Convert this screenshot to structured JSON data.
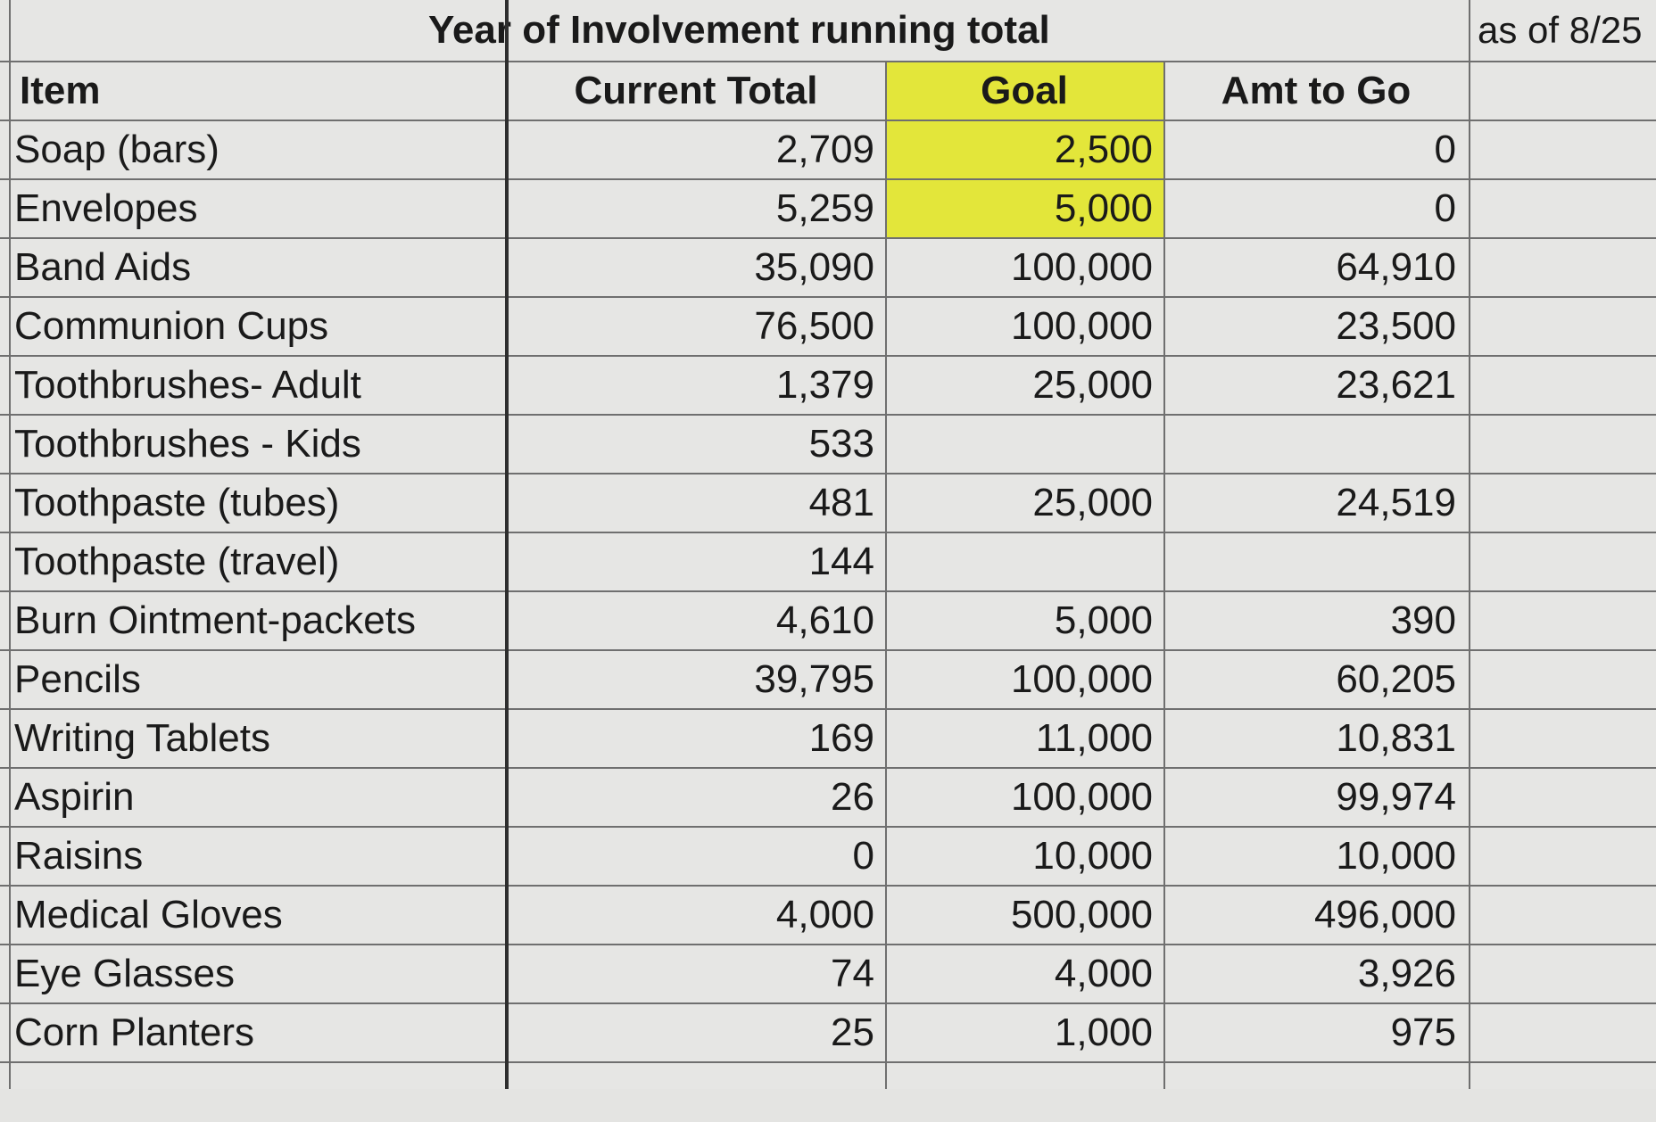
{
  "sheet": {
    "title": "Year of Involvement running total",
    "as_of": "as of 8/25",
    "headers": {
      "item": "Item",
      "current_total": "Current Total",
      "goal": "Goal",
      "amt_to_go": "Amt to Go"
    },
    "highlight_color": "#e3e63a",
    "rows": [
      {
        "item": "Soap (bars)",
        "current": "2,709",
        "goal": "2,500",
        "amt": "0"
      },
      {
        "item": "Envelopes",
        "current": "5,259",
        "goal": "5,000",
        "amt": "0"
      },
      {
        "item": "Band Aids",
        "current": "35,090",
        "goal": "100,000",
        "amt": "64,910"
      },
      {
        "item": "Communion Cups",
        "current": "76,500",
        "goal": "100,000",
        "amt": "23,500"
      },
      {
        "item": "Toothbrushes- Adult",
        "current": "1,379",
        "goal": "25,000",
        "amt": "23,621"
      },
      {
        "item": "Toothbrushes - Kids",
        "current": "533",
        "goal": "",
        "amt": ""
      },
      {
        "item": "Toothpaste (tubes)",
        "current": "481",
        "goal": "25,000",
        "amt": "24,519"
      },
      {
        "item": "Toothpaste (travel)",
        "current": "144",
        "goal": "",
        "amt": ""
      },
      {
        "item": "Burn Ointment-packets",
        "current": "4,610",
        "goal": "5,000",
        "amt": "390"
      },
      {
        "item": "Pencils",
        "current": "39,795",
        "goal": "100,000",
        "amt": "60,205"
      },
      {
        "item": "Writing Tablets",
        "current": "169",
        "goal": "11,000",
        "amt": "10,831"
      },
      {
        "item": "Aspirin",
        "current": "26",
        "goal": "100,000",
        "amt": "99,974"
      },
      {
        "item": "Raisins",
        "current": "0",
        "goal": "10,000",
        "amt": "10,000"
      },
      {
        "item": "Medical Gloves",
        "current": "4,000",
        "goal": "500,000",
        "amt": "496,000"
      },
      {
        "item": "Eye Glasses",
        "current": "74",
        "goal": "4,000",
        "amt": "3,926"
      },
      {
        "item": "Corn Planters",
        "current": "25",
        "goal": "1,000",
        "amt": "975"
      }
    ]
  }
}
